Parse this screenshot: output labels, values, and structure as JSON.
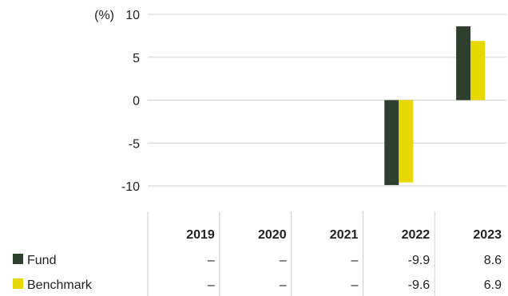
{
  "chart_data": {
    "type": "bar",
    "ylabel": "(%)",
    "ylim": [
      -10,
      10
    ],
    "yticks": [
      10,
      5,
      0,
      -5,
      -10
    ],
    "grid": true,
    "categories": [
      "2019",
      "2020",
      "2021",
      "2022",
      "2023"
    ],
    "series": [
      {
        "name": "Fund",
        "color": "#2e3f2e",
        "values": [
          null,
          null,
          null,
          -9.9,
          8.6
        ],
        "labels": [
          "–",
          "–",
          "–",
          "-9.9",
          "8.6"
        ]
      },
      {
        "name": "Benchmark",
        "color": "#e6d800",
        "values": [
          null,
          null,
          null,
          -9.6,
          6.9
        ],
        "labels": [
          "–",
          "–",
          "–",
          "-9.6",
          "6.9"
        ]
      }
    ]
  }
}
